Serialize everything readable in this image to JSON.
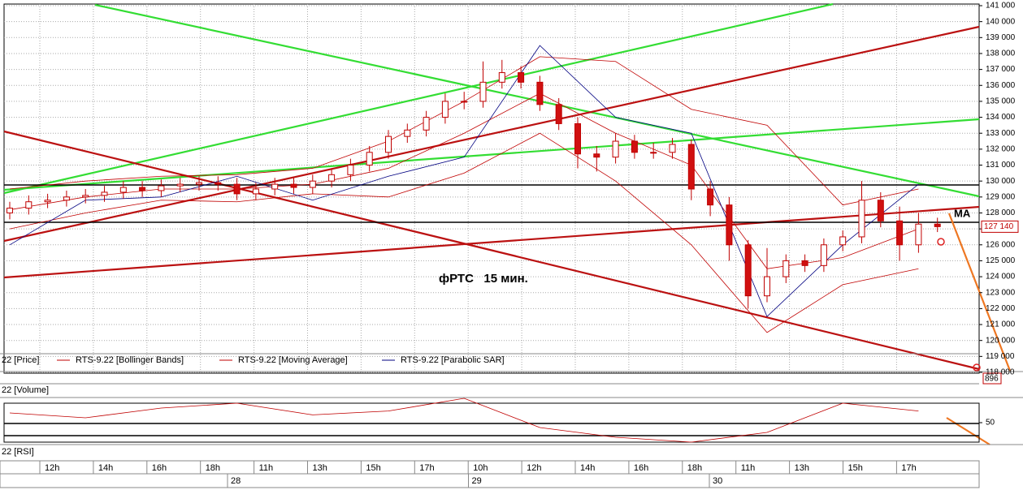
{
  "chart_data": {
    "type": "candlestick",
    "annotation": "фРТС   15 мин.",
    "line_label": "MA",
    "last_price": {
      "value": 127140,
      "label": "127 140"
    },
    "ylim": [
      118000,
      141000
    ],
    "yticks": [
      {
        "value": 118000,
        "label": "118 000"
      },
      {
        "value": 119000,
        "label": "119 000"
      },
      {
        "value": 120000,
        "label": "120 000"
      },
      {
        "value": 121000,
        "label": "121 000"
      },
      {
        "value": 122000,
        "label": "122 000"
      },
      {
        "value": 123000,
        "label": "123 000"
      },
      {
        "value": 124000,
        "label": "124 000"
      },
      {
        "value": 125000,
        "label": "125 000"
      },
      {
        "value": 126000,
        "label": "126 000"
      },
      {
        "value": 127000,
        "label": "127 000"
      },
      {
        "value": 128000,
        "label": "128 000"
      },
      {
        "value": 129000,
        "label": "129 000"
      },
      {
        "value": 130000,
        "label": "130 000"
      },
      {
        "value": 131000,
        "label": "131 000"
      },
      {
        "value": 132000,
        "label": "132 000"
      },
      {
        "value": 133000,
        "label": "133 000"
      },
      {
        "value": 134000,
        "label": "134 000"
      },
      {
        "value": 135000,
        "label": "135 000"
      },
      {
        "value": 136000,
        "label": "136 000"
      },
      {
        "value": 137000,
        "label": "137 000"
      },
      {
        "value": 138000,
        "label": "138 000"
      },
      {
        "value": 139000,
        "label": "139 000"
      },
      {
        "value": 140000,
        "label": "140 000"
      },
      {
        "value": 141000,
        "label": "141 000"
      }
    ],
    "grid": true,
    "up_color": "#ffffff",
    "down_color": "#d01010",
    "candle_color": "#c00000",
    "open": [
      128000,
      128300,
      128700,
      128800,
      129000,
      129100,
      129300,
      129600,
      129400,
      129700,
      129800,
      129900,
      129800,
      129200,
      129500,
      129800,
      129600,
      130000,
      130400,
      131000,
      131800,
      132800,
      133200,
      134000,
      135000,
      135000,
      136200,
      136800,
      136200,
      134800,
      133600,
      131700,
      131500,
      132500,
      131800,
      131800,
      132300,
      129500,
      128500,
      126000,
      122800,
      124000,
      125000,
      124700,
      126000,
      126500,
      128800,
      127500,
      126000,
      127300
    ],
    "high": [
      128700,
      129100,
      129200,
      129400,
      129500,
      129700,
      130000,
      130000,
      130100,
      130200,
      130300,
      130300,
      130200,
      129900,
      130200,
      130200,
      130400,
      130800,
      131400,
      132200,
      133200,
      133600,
      134400,
      135500,
      135600,
      137500,
      137600,
      137200,
      136600,
      135200,
      134000,
      132200,
      133000,
      132900,
      132400,
      132700,
      132600,
      130000,
      129000,
      126300,
      125800,
      125400,
      125400,
      126400,
      126900,
      130000,
      129300,
      128400,
      128000,
      127700
    ],
    "low": [
      127600,
      127900,
      128300,
      128400,
      128600,
      128700,
      128900,
      129000,
      129000,
      129300,
      129400,
      129400,
      128800,
      128800,
      129100,
      129200,
      129200,
      129600,
      130000,
      130600,
      131400,
      132400,
      132800,
      133600,
      134500,
      134600,
      135800,
      135800,
      134400,
      133200,
      130800,
      130600,
      131100,
      131400,
      131400,
      131400,
      128800,
      127800,
      125000,
      122000,
      122400,
      123600,
      124300,
      124300,
      125600,
      126100,
      127100,
      125000,
      125500,
      126800
    ],
    "close": [
      128300,
      128700,
      128800,
      129000,
      129100,
      129300,
      129600,
      129400,
      129700,
      129800,
      129900,
      129800,
      129200,
      129500,
      129800,
      129600,
      130000,
      130400,
      131000,
      131800,
      132800,
      133200,
      134000,
      135000,
      135000,
      136200,
      136800,
      136200,
      134800,
      133600,
      131700,
      131500,
      132500,
      131800,
      131800,
      132300,
      129500,
      128500,
      126000,
      122800,
      124000,
      125000,
      124700,
      126000,
      126500,
      128800,
      127500,
      126000,
      127300,
      127140
    ],
    "price_legend": "22 [Price]",
    "overlay_x": [
      0,
      4,
      8,
      12,
      16,
      20,
      24,
      28,
      32,
      36,
      40,
      44,
      48
    ],
    "series": [
      {
        "name": "RTS-9.22 [Bollinger Bands]",
        "color": "#c00000",
        "upper": [
          129500,
          130000,
          130300,
          130400,
          130800,
          132500,
          135000,
          137800,
          137500,
          134500,
          133500,
          128500,
          129500
        ],
        "lower": [
          127000,
          128000,
          128800,
          128700,
          129200,
          129000,
          130500,
          133000,
          130000,
          126000,
          120500,
          123500,
          124500
        ]
      },
      {
        "name": "RTS-9.22 [Moving Average]",
        "color": "#c00000",
        "values": [
          128200,
          129000,
          129500,
          129500,
          129800,
          130800,
          133000,
          135500,
          133000,
          131000,
          124500,
          125200,
          127000
        ]
      },
      {
        "name": "RTS-9.22 [Parabolic SAR]",
        "color": "#000080",
        "values": [
          126000,
          128800,
          129000,
          130300,
          128800,
          130300,
          131500,
          138500,
          134000,
          133000,
          121500,
          126000,
          129800
        ]
      }
    ],
    "volume": {
      "title": "22 [Volume]",
      "label": "896"
    },
    "rsi": {
      "title": "22 [RSI]",
      "color": "#c00000",
      "ylim": [
        30,
        70
      ],
      "yticks": [
        50
      ],
      "values": [
        60,
        55,
        65,
        70,
        58,
        62,
        75,
        45,
        35,
        30,
        40,
        70,
        62
      ]
    },
    "time_axis": {
      "hours": [
        "12h",
        "14h",
        "16h",
        "18h",
        "11h",
        "13h",
        "15h",
        "17h",
        "10h",
        "12h",
        "14h",
        "16h",
        "18h",
        "11h",
        "13h",
        "15h",
        "17h"
      ],
      "days": [
        "28",
        "29",
        "30"
      ]
    }
  }
}
